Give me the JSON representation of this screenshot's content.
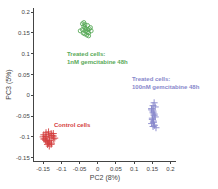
{
  "chart_data": {
    "type": "scatter",
    "xlabel": "PC2 (8%)",
    "ylabel": "PC3 (5%)",
    "xlim": [
      -0.175,
      0.215
    ],
    "ylim": [
      -0.158,
      0.21
    ],
    "xticks": [
      -0.15,
      -0.1,
      -0.05,
      0,
      0.05,
      0.1,
      0.15,
      0.2
    ],
    "yticks": [
      -0.15,
      -0.1,
      -0.05,
      0,
      0.05,
      0.1,
      0.15,
      0.2
    ],
    "grid": false,
    "series": [
      {
        "color": "#5aaa5a",
        "marker": "open circle",
        "x": [
          -0.038,
          -0.035,
          -0.032,
          -0.042,
          -0.048,
          -0.033,
          -0.028,
          -0.025,
          -0.04,
          -0.036,
          -0.03,
          -0.025,
          -0.023,
          -0.018,
          -0.035,
          -0.028,
          -0.02,
          -0.038,
          -0.042,
          -0.027
        ],
        "y": [
          0.165,
          0.162,
          0.16,
          0.158,
          0.155,
          0.155,
          0.153,
          0.15,
          0.15,
          0.148,
          0.145,
          0.143,
          0.16,
          0.155,
          0.17,
          0.168,
          0.163,
          0.175,
          0.172,
          0.158
        ]
      },
      {
        "color": "#d44040",
        "marker": "plus",
        "x": [
          -0.148,
          -0.142,
          -0.135,
          -0.128,
          -0.122,
          -0.118,
          -0.143,
          -0.137,
          -0.132,
          -0.126,
          -0.122,
          -0.138,
          -0.133,
          -0.128,
          -0.148,
          -0.142,
          -0.136,
          -0.132,
          -0.127,
          -0.122,
          -0.15,
          -0.145,
          -0.14,
          -0.135
        ],
        "y": [
          -0.095,
          -0.09,
          -0.088,
          -0.092,
          -0.098,
          -0.103,
          -0.108,
          -0.112,
          -0.102,
          -0.097,
          -0.092,
          -0.118,
          -0.122,
          -0.118,
          -0.105,
          -0.099,
          -0.095,
          -0.109,
          -0.115,
          -0.105,
          -0.1,
          -0.105,
          -0.11,
          -0.115
        ]
      },
      {
        "color": "#8888cc",
        "marker": "plus",
        "x": [
          0.148,
          0.152,
          0.155,
          0.158,
          0.15,
          0.153,
          0.156,
          0.16,
          0.152,
          0.155,
          0.158,
          0.148,
          0.152,
          0.155,
          0.15,
          0.153,
          0.148,
          0.152
        ],
        "y": [
          -0.032,
          -0.038,
          -0.045,
          -0.052,
          -0.058,
          -0.065,
          -0.072,
          -0.078,
          -0.025,
          -0.018,
          -0.028,
          -0.035,
          -0.042,
          -0.048,
          -0.055,
          -0.062,
          -0.068,
          -0.075
        ]
      }
    ],
    "annotations": [
      {
        "text": "Treated cells:\n1nM gemcitabine 48h",
        "x": -0.09,
        "y": 0.09,
        "color": "#5aaa5a"
      },
      {
        "text": "Control cells",
        "x": -0.125,
        "y": -0.072,
        "color": "#d44040"
      },
      {
        "text": "Treated cells:\n100nM gemcitabine 48h",
        "x": 0.088,
        "y": 0.03,
        "color": "#8888cc"
      }
    ]
  }
}
